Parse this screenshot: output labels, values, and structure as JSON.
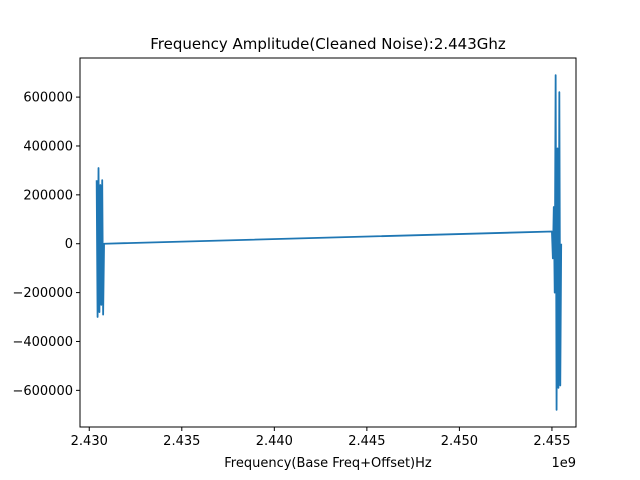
{
  "chart_data": {
    "type": "line",
    "title": "Frequency Amplitude(Cleaned Noise):2.443Ghz",
    "xlabel": "Frequency(Base Freq+Offset)Hz",
    "ylabel": "",
    "x_offset_label": "1e9",
    "xlim": [
      2.4295,
      2.4563
    ],
    "ylim": [
      -750000,
      760000
    ],
    "x_ticks": [
      2.43,
      2.435,
      2.44,
      2.445,
      2.45,
      2.455
    ],
    "x_tick_labels": [
      "2.430",
      "2.435",
      "2.440",
      "2.445",
      "2.450",
      "2.455"
    ],
    "y_ticks": [
      600000,
      400000,
      200000,
      0,
      -200000,
      -400000,
      -600000
    ],
    "y_tick_labels": [
      "600000",
      "400000",
      "200000",
      "0",
      "−200000",
      "−400000",
      "−600000"
    ],
    "grid": false,
    "line_color": "#1f77b4",
    "series": [
      {
        "name": "",
        "x": [
          2.4304,
          2.43045,
          2.4305,
          2.43055,
          2.4306,
          2.43065,
          2.4307,
          2.43075,
          2.4308,
          2.455,
          2.45505,
          2.4551,
          2.45515,
          2.4552,
          2.45525,
          2.4553,
          2.45535,
          2.4554,
          2.45545,
          2.4555
        ],
        "y": [
          260000,
          -300000,
          310000,
          -280000,
          240000,
          -250000,
          260000,
          -290000,
          0,
          50000,
          -60000,
          150000,
          -200000,
          690000,
          -680000,
          390000,
          -590000,
          620000,
          -580000,
          0
        ]
      }
    ]
  }
}
